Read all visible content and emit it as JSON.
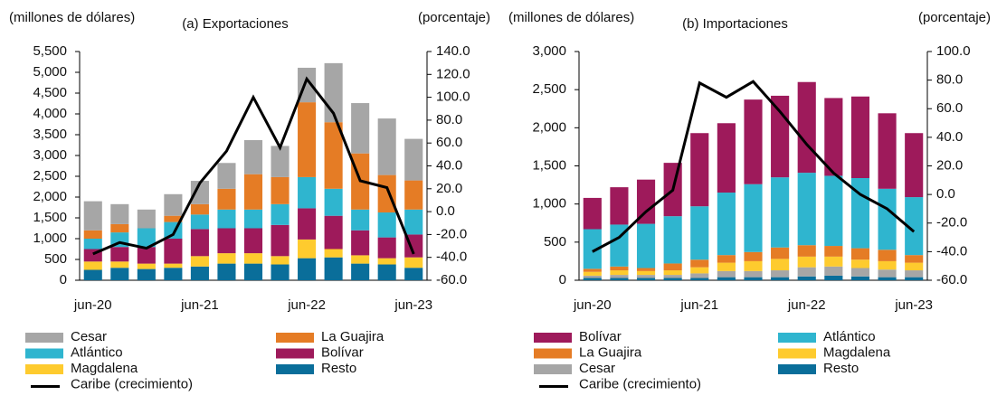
{
  "chart_data": [
    {
      "type": "bar",
      "title": "(a) Exportaciones",
      "y_label": "(millones de dólares)",
      "y2_label": "(porcentaje)",
      "categories": [
        "jun-20",
        null,
        null,
        null,
        "jun-21",
        null,
        null,
        null,
        "jun-22",
        null,
        null,
        null,
        "jun-23"
      ],
      "series": [
        {
          "name": "Cesar",
          "color": "#a6a6a6",
          "values": [
            700,
            480,
            450,
            520,
            560,
            620,
            820,
            750,
            830,
            1420,
            1210,
            1360,
            1000
          ]
        },
        {
          "name": "La Guajira",
          "color": "#e57c25",
          "values": [
            200,
            200,
            0,
            150,
            250,
            500,
            850,
            650,
            1800,
            1600,
            1350,
            900,
            700
          ]
        },
        {
          "name": "Atlántico",
          "color": "#2fb5cf",
          "values": [
            250,
            350,
            450,
            400,
            350,
            450,
            450,
            500,
            750,
            650,
            500,
            600,
            600
          ]
        },
        {
          "name": "Bolívar",
          "color": "#9e1a5b",
          "values": [
            300,
            350,
            400,
            600,
            650,
            600,
            600,
            750,
            750,
            800,
            600,
            500,
            550
          ]
        },
        {
          "name": "Magdalena",
          "color": "#fecb2e",
          "values": [
            200,
            150,
            130,
            100,
            250,
            250,
            250,
            200,
            450,
            200,
            200,
            150,
            250
          ]
        },
        {
          "name": "Resto",
          "color": "#0a6e9a",
          "values": [
            250,
            300,
            270,
            300,
            330,
            400,
            400,
            380,
            530,
            550,
            400,
            380,
            300
          ]
        },
        {
          "name": "Caribe (crecimiento)",
          "color": "#000000",
          "axis": "y2",
          "values": [
            -37,
            -27,
            -32,
            -20,
            25,
            53,
            100,
            56,
            116,
            86,
            27,
            21,
            -37
          ]
        }
      ],
      "ylim": [
        0,
        5500
      ],
      "yticks": [
        0,
        {
          "value": 500,
          "label": "500"
        },
        {
          "value": 1000,
          "label": "1,000"
        },
        {
          "value": 1500,
          "label": "1,500"
        },
        {
          "value": 2000,
          "label": "2,000"
        },
        {
          "value": 2500,
          "label": "2,500"
        },
        {
          "value": 3000,
          "label": "3,000"
        },
        {
          "value": 3500,
          "label": "3,500"
        },
        {
          "value": 4000,
          "label": "4,000"
        },
        {
          "value": 4500,
          "label": "4,500"
        },
        {
          "value": 5000,
          "label": "5,000"
        },
        {
          "value": 5500,
          "label": "5,500"
        }
      ],
      "y2lim": [
        -60,
        140
      ],
      "y2ticks": [
        {
          "value": -60,
          "label": "-60.0"
        },
        {
          "value": -40,
          "label": "-40.0"
        },
        {
          "value": -20,
          "label": "-20.0"
        },
        {
          "value": 0,
          "label": "0.0"
        },
        {
          "value": 20,
          "label": "20.0"
        },
        {
          "value": 40,
          "label": "40.0"
        },
        {
          "value": 60,
          "label": "60.0"
        },
        {
          "value": 80,
          "label": "80.0"
        },
        {
          "value": 100,
          "label": "100.0"
        },
        {
          "value": 120,
          "label": "120.0"
        },
        {
          "value": 140,
          "label": "140.0"
        }
      ]
    },
    {
      "type": "bar",
      "title": "(b) Importaciones",
      "y_label": "(millones de dólares)",
      "y2_label": "(porcentaje)",
      "categories": [
        "jun-20",
        null,
        null,
        null,
        "jun-21",
        null,
        null,
        null,
        "jun-22",
        null,
        null,
        null,
        "jun-23"
      ],
      "series": [
        {
          "name": "Bolívar",
          "color": "#9e1a5b",
          "values": [
            410,
            490,
            580,
            700,
            960,
            910,
            1110,
            1070,
            1190,
            1020,
            1070,
            990,
            840
          ]
        },
        {
          "name": "Atlántico",
          "color": "#2fb5cf",
          "values": [
            520,
            550,
            580,
            620,
            700,
            820,
            890,
            920,
            950,
            920,
            920,
            800,
            760
          ]
        },
        {
          "name": "La Guajira",
          "color": "#e57c25",
          "values": [
            40,
            50,
            40,
            90,
            100,
            100,
            120,
            150,
            150,
            140,
            150,
            150,
            100
          ]
        },
        {
          "name": "Magdalena",
          "color": "#fecb2e",
          "values": [
            50,
            60,
            50,
            60,
            80,
            110,
            130,
            150,
            140,
            130,
            110,
            110,
            100
          ]
        },
        {
          "name": "Cesar",
          "color": "#a6a6a6",
          "values": [
            30,
            40,
            40,
            40,
            60,
            80,
            80,
            90,
            120,
            120,
            110,
            100,
            90
          ]
        },
        {
          "name": "Resto",
          "color": "#0a6e9a",
          "values": [
            30,
            30,
            30,
            30,
            30,
            40,
            40,
            40,
            50,
            60,
            50,
            40,
            40
          ]
        },
        {
          "name": "Caribe (crecimiento)",
          "color": "#000000",
          "axis": "y2",
          "values": [
            -40,
            -30,
            -12,
            3,
            78,
            68,
            79,
            58,
            35,
            15,
            0,
            -10,
            -26
          ]
        }
      ],
      "ylim": [
        0,
        3000
      ],
      "yticks": [
        0,
        {
          "value": 500,
          "label": "500"
        },
        {
          "value": 1000,
          "label": "1,000"
        },
        {
          "value": 1500,
          "label": "1,500"
        },
        {
          "value": 2000,
          "label": "2,000"
        },
        {
          "value": 2500,
          "label": "2,500"
        },
        {
          "value": 3000,
          "label": "3,000"
        }
      ],
      "y2lim": [
        -60,
        100
      ],
      "y2ticks": [
        {
          "value": -60,
          "label": "-60.0"
        },
        {
          "value": -40,
          "label": "-40.0"
        },
        {
          "value": -20,
          "label": "-20.0"
        },
        {
          "value": 0,
          "label": "0.0"
        },
        {
          "value": 20,
          "label": "20.0"
        },
        {
          "value": 40,
          "label": "40.0"
        },
        {
          "value": 60,
          "label": "60.0"
        },
        {
          "value": 80,
          "label": "80.0"
        },
        {
          "value": 100,
          "label": "100.0"
        }
      ]
    }
  ]
}
